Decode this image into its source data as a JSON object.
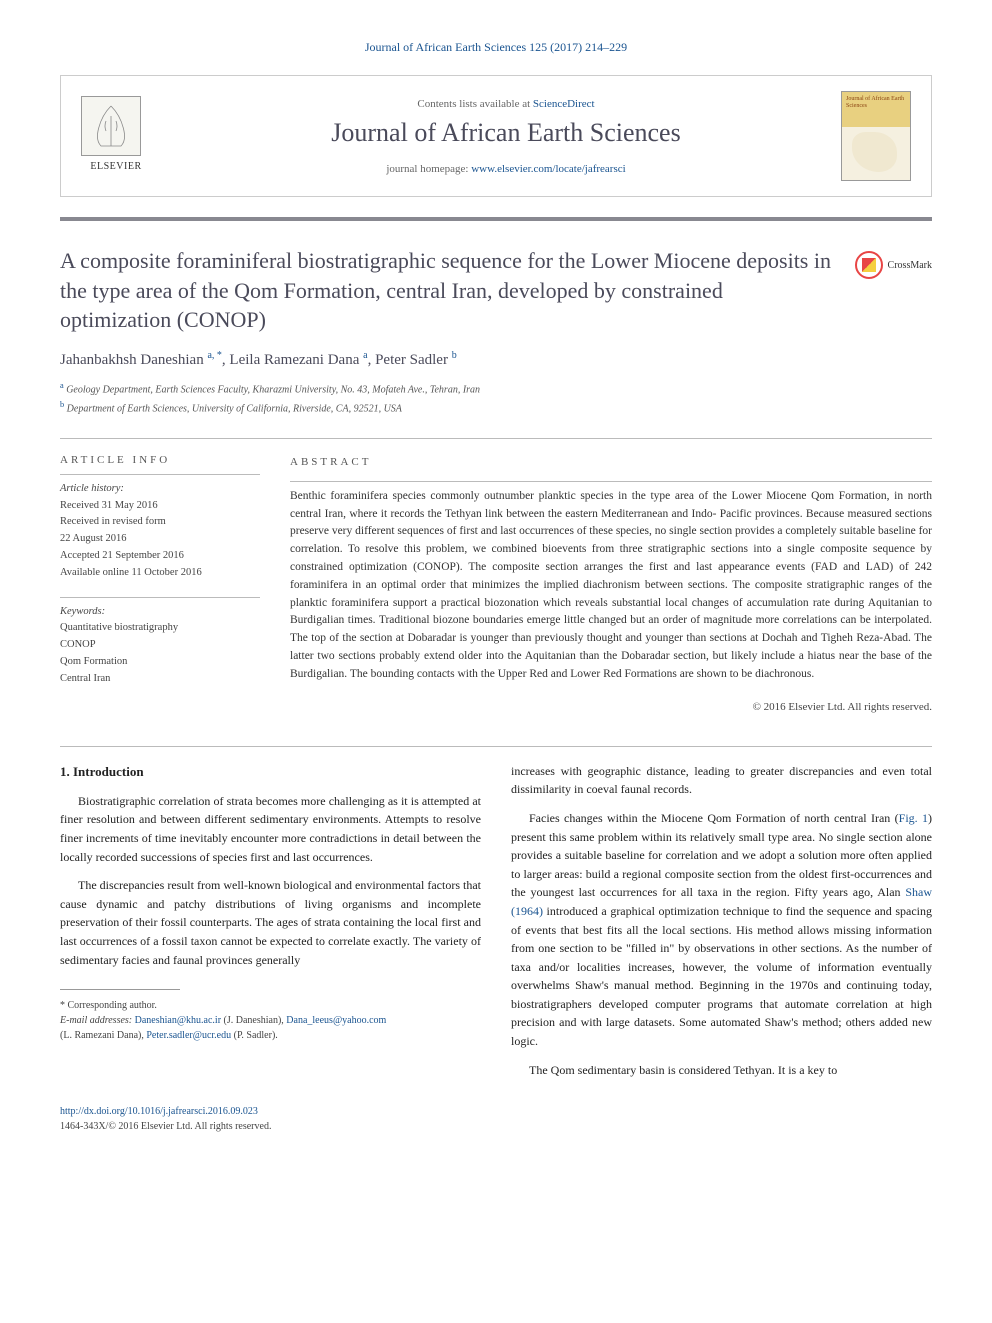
{
  "citation": "Journal of African Earth Sciences 125 (2017) 214–229",
  "header": {
    "contents_prefix": "Contents lists available at ",
    "contents_link": "ScienceDirect",
    "journal_title": "Journal of African Earth Sciences",
    "homepage_prefix": "journal homepage: ",
    "homepage_url": "www.elsevier.com/locate/jafrearsci",
    "publisher": "ELSEVIER",
    "cover_journal_label": "Journal of African Earth Sciences"
  },
  "crossmark": "CrossMark",
  "article": {
    "title": "A composite foraminiferal biostratigraphic sequence for the Lower Miocene deposits in the type area of the Qom Formation, central Iran, developed by constrained optimization (CONOP)",
    "authors_html": "Jahanbakhsh Daneshian <sup>a, *</sup>, Leila Ramezani Dana <sup>a</sup>, Peter Sadler <sup>b</sup>",
    "affiliations": [
      {
        "sup": "a",
        "text": " Geology Department, Earth Sciences Faculty, Kharazmi University, No. 43, Mofateh Ave., Tehran, Iran"
      },
      {
        "sup": "b",
        "text": " Department of Earth Sciences, University of California, Riverside, CA, 92521, USA"
      }
    ]
  },
  "info": {
    "heading": "ARTICLE INFO",
    "history_label": "Article history:",
    "received": "Received 31 May 2016",
    "revised1": "Received in revised form",
    "revised2": "22 August 2016",
    "accepted": "Accepted 21 September 2016",
    "online": "Available online 11 October 2016",
    "keywords_label": "Keywords:",
    "keywords": [
      "Quantitative biostratigraphy",
      "CONOP",
      "Qom Formation",
      "Central Iran"
    ]
  },
  "abstract": {
    "heading": "ABSTRACT",
    "text": "Benthic foraminifera species commonly outnumber planktic species in the type area of the Lower Miocene Qom Formation, in north central Iran, where it records the Tethyan link between the eastern Mediterranean and Indo- Pacific provinces. Because measured sections preserve very different sequences of first and last occurrences of these species, no single section provides a completely suitable baseline for correlation. To resolve this problem, we combined bioevents from three stratigraphic sections into a single composite sequence by constrained optimization (CONOP). The composite section arranges the first and last appearance events (FAD and LAD) of 242 foraminifera in an optimal order that minimizes the implied diachronism between sections. The composite stratigraphic ranges of the planktic foraminifera support a practical biozonation which reveals substantial local changes of accumulation rate during Aquitanian to Burdigalian times. Traditional biozone boundaries emerge little changed but an order of magnitude more correlations can be interpolated. The top of the section at Dobaradar is younger than previously thought and younger than sections at Dochah and Tigheh Reza-Abad. The latter two sections probably extend older into the Aquitanian than the Dobaradar section, but likely include a hiatus near the base of the Burdigalian. The bounding contacts with the Upper Red and Lower Red Formations are shown to be diachronous.",
    "copyright": "© 2016 Elsevier Ltd. All rights reserved."
  },
  "body": {
    "section_heading": "1. Introduction",
    "left_paras": [
      "Biostratigraphic correlation of strata becomes more challenging as it is attempted at finer resolution and between different sedimentary environments. Attempts to resolve finer increments of time inevitably encounter more contradictions in detail between the locally recorded successions of species first and last occurrences.",
      "The discrepancies result from well-known biological and environmental factors that cause dynamic and patchy distributions of living organisms and incomplete preservation of their fossil counterparts. The ages of strata containing the local first and last occurrences of a fossil taxon cannot be expected to correlate exactly. The variety of sedimentary facies and faunal provinces generally"
    ],
    "right_paras": [
      "increases with geographic distance, leading to greater discrepancies and even total dissimilarity in coeval faunal records.",
      "Facies changes within the Miocene Qom Formation of north central Iran (<span class=\"cite-link\">Fig. 1</span>) present this same problem within its relatively small type area. No single section alone provides a suitable baseline for correlation and we adopt a solution more often applied to larger areas: build a regional composite section from the oldest first-occurrences and the youngest last occurrences for all taxa in the region. Fifty years ago, Alan <span class=\"cite-link\">Shaw (1964)</span> introduced a graphical optimization technique to find the sequence and spacing of events that best fits all the local sections. His method allows missing information from one section to be \"filled in\" by observations in other sections. As the number of taxa and/or localities increases, however, the volume of information eventually overwhelms Shaw's manual method. Beginning in the 1970s and continuing today, biostratigraphers developed computer programs that automate correlation at high precision and with large datasets. Some automated Shaw's method; others added new logic.",
      "The Qom sedimentary basin is considered Tethyan. It is a key to"
    ]
  },
  "footnotes": {
    "corresponding": "* Corresponding author.",
    "email_label": "E-mail addresses: ",
    "emails": [
      {
        "addr": "Daneshian@khu.ac.ir",
        "person": " (J. Daneshian), "
      },
      {
        "addr": "Dana_leeus@yahoo.com",
        "person": " (L. Ramezani Dana), "
      },
      {
        "addr": "Peter.sadler@ucr.edu",
        "person": " (P. Sadler)."
      }
    ]
  },
  "footer": {
    "doi": "http://dx.doi.org/10.1016/j.jafrearsci.2016.09.023",
    "issn_copyright": "1464-343X/© 2016 Elsevier Ltd. All rights reserved."
  },
  "colors": {
    "link": "#1a5490",
    "title": "#4a4a5a",
    "bar": "#888890"
  }
}
